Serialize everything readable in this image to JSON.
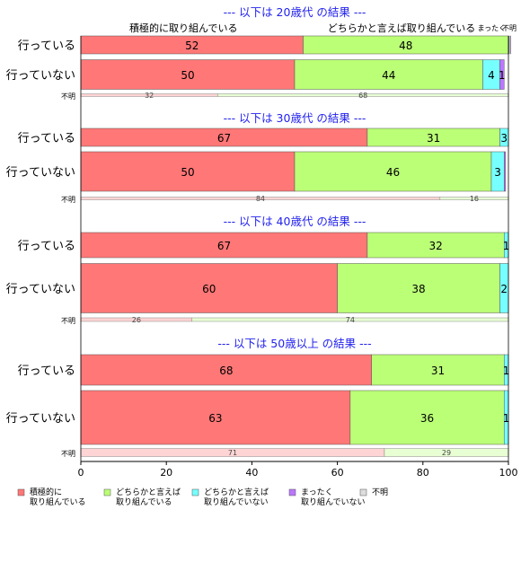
{
  "chart_data": {
    "type": "bar",
    "orientation": "horizontal",
    "stacked": true,
    "percent_scale": true,
    "xlim": [
      0,
      100
    ],
    "xticks": [
      0,
      20,
      40,
      60,
      80,
      100
    ],
    "legend": "bottom",
    "grid": false,
    "header_categories": [
      "積極的に取り組んでいる",
      "どちらかと言えば取り組んでいる",
      "まったく",
      "不明"
    ],
    "legend_entries": [
      {
        "label": "積極的に\n取り組んでいる",
        "color": "#ff7777"
      },
      {
        "label": "どちらかと言えば\n取り組んでいる",
        "color": "#bbff77"
      },
      {
        "label": "どちらかと言えば\n取り組んでいない",
        "color": "#77ffff"
      },
      {
        "label": "まったく\n取り組んでいない",
        "color": "#bb77ff"
      },
      {
        "label": "不明",
        "color": "#dddddd"
      }
    ],
    "unknown_colors": [
      "#ffd4d4",
      "#e8ffd4"
    ],
    "panels": [
      {
        "title": "--- 以下は 20歳代 の結果 ---",
        "rows": [
          {
            "label": "行っている",
            "values": [
              52,
              48,
              0.4,
              0.3
            ]
          },
          {
            "label": "行っていない",
            "values": [
              50,
              44,
              4,
              1
            ]
          }
        ],
        "unknown": {
          "label": "不明",
          "values": [
            32,
            68
          ]
        }
      },
      {
        "title": "--- 以下は 30歳代 の結果 ---",
        "rows": [
          {
            "label": "行っている",
            "values": [
              67,
              31,
              3,
              0
            ]
          },
          {
            "label": "行っていない",
            "values": [
              50,
              46,
              3,
              0.3
            ]
          }
        ],
        "unknown": {
          "label": "不明",
          "values": [
            84,
            16
          ]
        }
      },
      {
        "title": "--- 以下は 40歳代 の結果 ---",
        "rows": [
          {
            "label": "行っている",
            "values": [
              67,
              32,
              1,
              0
            ]
          },
          {
            "label": "行っていない",
            "values": [
              60,
              38,
              2,
              0
            ]
          }
        ],
        "unknown": {
          "label": "不明",
          "values": [
            26,
            74
          ]
        }
      },
      {
        "title": "--- 以下は 50歳以上 の結果 ---",
        "rows": [
          {
            "label": "行っている",
            "values": [
              68,
              31,
              1,
              0
            ]
          },
          {
            "label": "行っていない",
            "values": [
              63,
              36,
              1,
              0
            ]
          }
        ],
        "unknown": {
          "label": "不明",
          "values": [
            71,
            29
          ]
        }
      }
    ]
  }
}
